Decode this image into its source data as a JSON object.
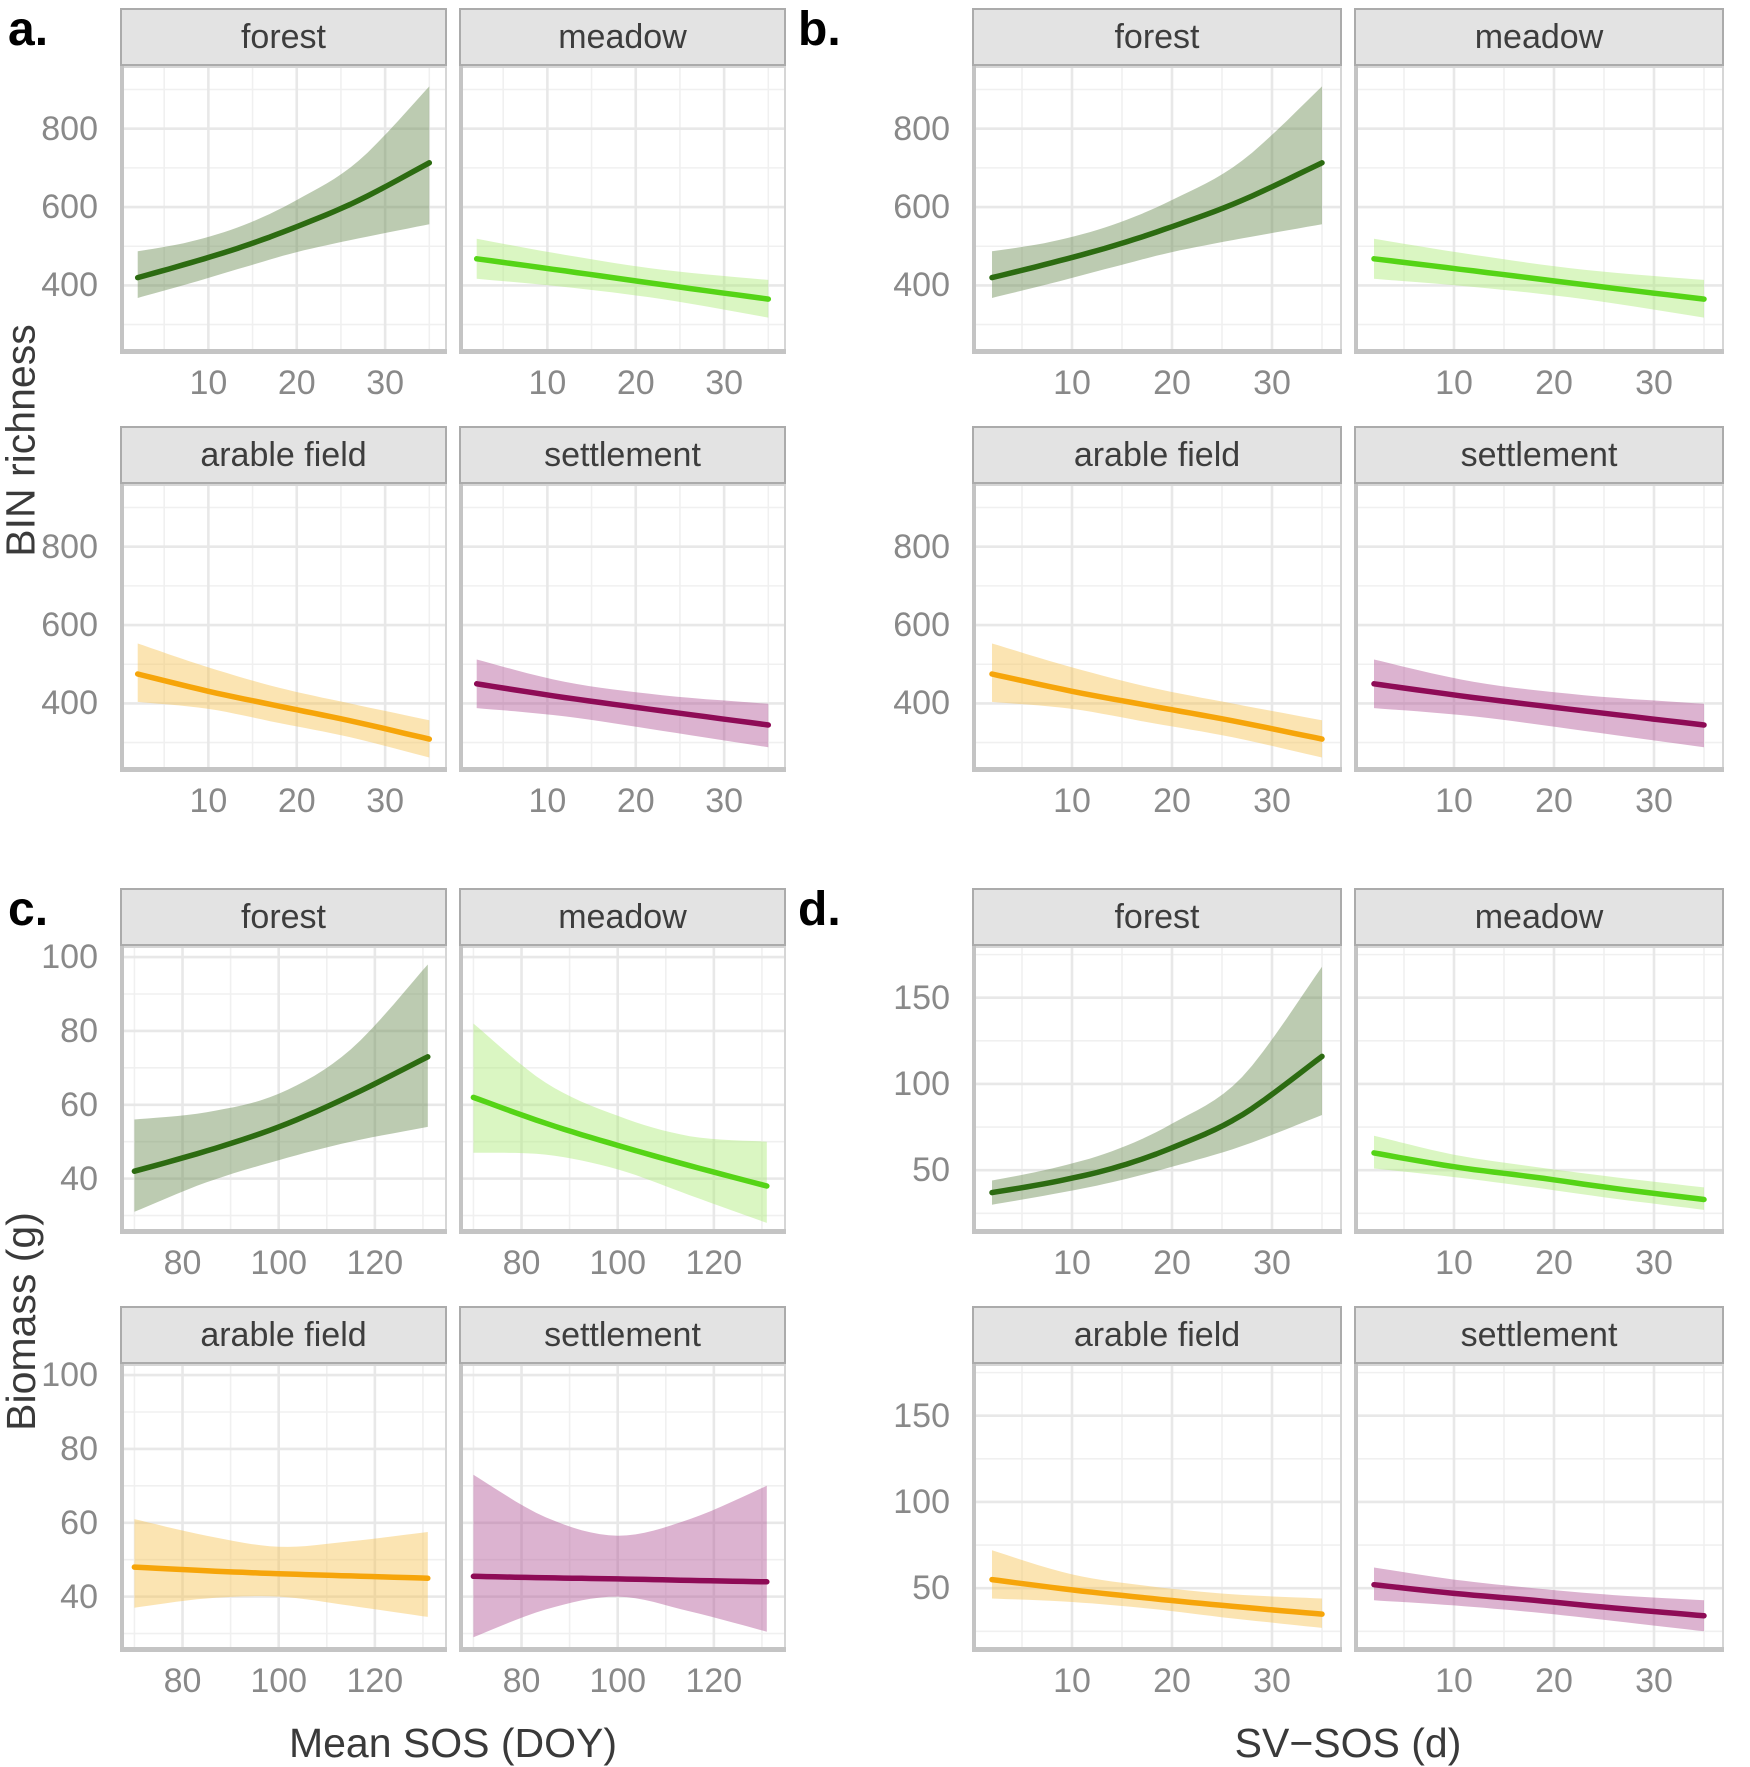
{
  "figure": {
    "background": "#ffffff",
    "text_colors": {
      "ticks": "#898989",
      "strip": "#3d3d3d",
      "axis_title": "#3a3a3a",
      "panel_label": "#000000"
    }
  },
  "chart_data": {
    "type": "line",
    "description": "Faceted regression fits with confidence ribbons; four panels (a-d), each faceted by habitat: forest, meadow, arable field, settlement",
    "legend_position": "none",
    "grid": true,
    "series_colors": {
      "forest": {
        "line": "#2c6b11",
        "ribbon": "rgba(106,139,82,0.45)"
      },
      "meadow": {
        "line": "#55d416",
        "ribbon": "rgba(173,235,119,0.45)"
      },
      "arable field": {
        "line": "#f6a50a",
        "ribbon": "rgba(246,195,84,0.45)"
      },
      "settlement": {
        "line": "#8e0b56",
        "ribbon": "rgba(177,86,151,0.45)"
      }
    },
    "panels": [
      {
        "label": "a.",
        "y_title": "BIN richness",
        "x_title": null,
        "x": {
          "domain": [
            0,
            37
          ],
          "ticks": [
            10,
            20,
            30
          ],
          "minor": [
            5,
            15,
            25,
            35
          ]
        },
        "y": {
          "domain": [
            225,
            960
          ],
          "ticks": [
            400,
            600,
            800
          ],
          "minor": [
            300,
            500,
            700,
            900
          ]
        },
        "facets": [
          {
            "name": "forest",
            "x": [
              2,
              8,
              14,
              20,
              27,
              35
            ],
            "y": [
              420,
              458,
              500,
              550,
              617,
              713
            ],
            "lo": [
              368,
              406,
              446,
              485,
              520,
              556
            ],
            "hi": [
              487,
              512,
              554,
              618,
              718,
              908
            ]
          },
          {
            "name": "meadow",
            "x": [
              2,
              12,
              23,
              35
            ],
            "y": [
              468,
              437,
              402,
              365
            ],
            "lo": [
              417,
              396,
              365,
              318
            ],
            "hi": [
              519,
              478,
              440,
              414
            ]
          },
          {
            "name": "arable field",
            "x": [
              2,
              10,
              18,
              26,
              35
            ],
            "y": [
              475,
              431,
              393,
              356,
              309
            ],
            "lo": [
              404,
              386,
              350,
              314,
              262
            ],
            "hi": [
              553,
              492,
              440,
              400,
              357
            ]
          },
          {
            "name": "settlement",
            "x": [
              2,
              12,
              23,
              35
            ],
            "y": [
              450,
              415,
              381,
              345
            ],
            "lo": [
              388,
              367,
              330,
              288
            ],
            "hi": [
              512,
              455,
              421,
              399
            ]
          }
        ]
      },
      {
        "label": "b.",
        "y_title": null,
        "x_title": null,
        "x": {
          "domain": [
            0,
            37
          ],
          "ticks": [
            10,
            20,
            30
          ],
          "minor": [
            5,
            15,
            25,
            35
          ]
        },
        "y": {
          "domain": [
            225,
            960
          ],
          "ticks": [
            400,
            600,
            800
          ],
          "minor": [
            300,
            500,
            700,
            900
          ]
        },
        "facets": [
          {
            "name": "forest",
            "x": [
              2,
              8,
              14,
              20,
              27,
              35
            ],
            "y": [
              420,
              458,
              500,
              550,
              617,
              713
            ],
            "lo": [
              368,
              406,
              446,
              485,
              520,
              556
            ],
            "hi": [
              487,
              512,
              554,
              618,
              718,
              908
            ]
          },
          {
            "name": "meadow",
            "x": [
              2,
              12,
              23,
              35
            ],
            "y": [
              468,
              437,
              402,
              365
            ],
            "lo": [
              417,
              396,
              365,
              318
            ],
            "hi": [
              519,
              478,
              440,
              414
            ]
          },
          {
            "name": "arable field",
            "x": [
              2,
              10,
              18,
              26,
              35
            ],
            "y": [
              475,
              431,
              393,
              356,
              309
            ],
            "lo": [
              404,
              386,
              350,
              314,
              262
            ],
            "hi": [
              553,
              492,
              440,
              400,
              357
            ]
          },
          {
            "name": "settlement",
            "x": [
              2,
              12,
              23,
              35
            ],
            "y": [
              450,
              415,
              381,
              345
            ],
            "lo": [
              388,
              367,
              330,
              288
            ],
            "hi": [
              512,
              455,
              421,
              399
            ]
          }
        ]
      },
      {
        "label": "c.",
        "y_title": "Biomass (g)",
        "x_title": "Mean SOS (DOY)",
        "x": {
          "domain": [
            67,
            135
          ],
          "ticks": [
            80,
            100,
            120
          ],
          "minor": [
            70,
            90,
            110,
            130
          ]
        },
        "y": {
          "domain": [
            25,
            103
          ],
          "ticks": [
            40,
            60,
            80,
            100
          ],
          "minor": [
            30,
            50,
            70,
            90
          ]
        },
        "facets": [
          {
            "name": "forest",
            "x": [
              70,
              85,
              100,
              115,
              131
            ],
            "y": [
              42,
              47.5,
              54,
              62.5,
              73
            ],
            "lo": [
              31,
              39,
              45,
              50,
              54
            ],
            "hi": [
              56,
              58,
              63,
              75,
              98
            ]
          },
          {
            "name": "meadow",
            "x": [
              70,
              85,
              100,
              115,
              131
            ],
            "y": [
              62,
              55,
              49,
              43.5,
              38
            ],
            "lo": [
              47,
              46.5,
              42.5,
              35.5,
              28
            ],
            "hi": [
              82,
              66,
              57,
              51.5,
              50
            ]
          },
          {
            "name": "arable field",
            "x": [
              70,
              85,
              100,
              115,
              131
            ],
            "y": [
              48,
              47,
              46.2,
              45.6,
              45
            ],
            "lo": [
              37,
              39.5,
              40,
              37.5,
              34.5
            ],
            "hi": [
              61,
              56.5,
              53.5,
              55,
              57.5
            ]
          },
          {
            "name": "settlement",
            "x": [
              70,
              85,
              100,
              115,
              131
            ],
            "y": [
              45.5,
              45.1,
              44.8,
              44.4,
              44
            ],
            "lo": [
              29,
              36.5,
              40,
              36,
              30.5
            ],
            "hi": [
              73,
              61.5,
              56.5,
              61,
              70
            ]
          }
        ]
      },
      {
        "label": "d.",
        "y_title": null,
        "x_title": "SV−SOS (d)",
        "x": {
          "domain": [
            0,
            37
          ],
          "ticks": [
            10,
            20,
            30
          ],
          "minor": [
            5,
            15,
            25,
            35
          ]
        },
        "y": {
          "domain": [
            13,
            180
          ],
          "ticks": [
            50,
            100,
            150
          ],
          "minor": [
            25,
            75,
            125,
            175
          ]
        },
        "facets": [
          {
            "name": "forest",
            "x": [
              2,
              8,
              14,
              20,
              27,
              35
            ],
            "y": [
              37,
              43,
              51,
              63,
              82,
              116
            ],
            "lo": [
              30,
              36,
              43,
              52,
              64,
              82
            ],
            "hi": [
              44,
              51,
              61,
              77,
              104,
              168
            ]
          },
          {
            "name": "meadow",
            "x": [
              2,
              10,
              18,
              26,
              35
            ],
            "y": [
              60,
              52,
              46,
              39.5,
              33
            ],
            "lo": [
              51,
              46,
              40,
              33.5,
              27
            ],
            "hi": [
              70,
              59,
              52,
              46,
              40
            ]
          },
          {
            "name": "arable field",
            "x": [
              2,
              10,
              18,
              26,
              35
            ],
            "y": [
              55,
              49,
              44,
              39.5,
              35
            ],
            "lo": [
              44,
              42,
              38,
              32.5,
              27
            ],
            "hi": [
              72,
              58,
              51,
              46.5,
              44
            ]
          },
          {
            "name": "settlement",
            "x": [
              2,
              10,
              18,
              26,
              35
            ],
            "y": [
              52,
              47,
              43,
              38.5,
              34
            ],
            "lo": [
              43,
              40,
              36,
              31,
              25
            ],
            "hi": [
              62,
              55,
              50,
              46,
              43
            ]
          }
        ]
      }
    ]
  }
}
